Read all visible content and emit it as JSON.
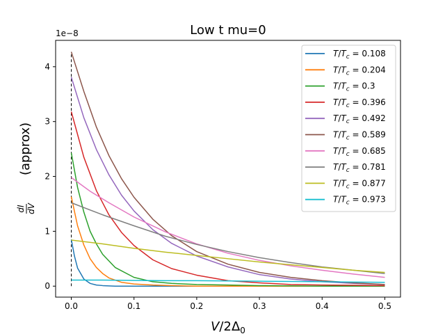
{
  "chart_data": {
    "type": "line",
    "title": "Low t  mu=0",
    "xlabel": "V/2Δ₀",
    "ylabel": "dI/dV (approx)",
    "ylabel_suffix": "(approx)",
    "y_scale_label": "1e−8",
    "y_unit_multiplier": 1e-08,
    "xlim": [
      -0.025,
      0.525
    ],
    "ylim": [
      -0.2,
      4.48
    ],
    "x_ticks": [
      0.0,
      0.1,
      0.2,
      0.3,
      0.4,
      0.5
    ],
    "x_tick_labels": [
      "0.0",
      "0.1",
      "0.2",
      "0.3",
      "0.4",
      "0.5"
    ],
    "y_ticks": [
      0,
      1,
      2,
      3,
      4
    ],
    "y_tick_labels": [
      "0",
      "1",
      "2",
      "3",
      "4"
    ],
    "grid": false,
    "legend_position": "top-right",
    "vline_x": 0.0,
    "vline_range": [
      0.0,
      4.27
    ],
    "series": [
      {
        "name": "T/Tc = 0.108",
        "color": "#1f77b4",
        "x": [
          0,
          0.005,
          0.01,
          0.02,
          0.03,
          0.04,
          0.05,
          0.07,
          0.1,
          0.15,
          0.2,
          0.3,
          0.4,
          0.5
        ],
        "y": [
          0.85,
          0.55,
          0.33,
          0.13,
          0.05,
          0.02,
          0.01,
          0.0,
          0.0,
          0.0,
          0.0,
          0.0,
          0.0,
          0.0
        ]
      },
      {
        "name": "T/Tc = 0.204",
        "color": "#ff7f0e",
        "x": [
          0,
          0.01,
          0.02,
          0.03,
          0.04,
          0.05,
          0.06,
          0.08,
          0.1,
          0.13,
          0.16,
          0.2,
          0.3,
          0.4,
          0.5
        ],
        "y": [
          1.63,
          1.1,
          0.75,
          0.5,
          0.34,
          0.23,
          0.15,
          0.07,
          0.04,
          0.02,
          0.01,
          0.0,
          0.0,
          0.0,
          0.0
        ]
      },
      {
        "name": "T/Tc = 0.3",
        "color": "#2ca02c",
        "x": [
          0,
          0.01,
          0.02,
          0.03,
          0.04,
          0.05,
          0.07,
          0.1,
          0.13,
          0.16,
          0.2,
          0.25,
          0.3,
          0.4,
          0.5
        ],
        "y": [
          2.43,
          1.8,
          1.35,
          1.0,
          0.77,
          0.58,
          0.34,
          0.16,
          0.08,
          0.05,
          0.03,
          0.02,
          0.01,
          0.0,
          0.0
        ]
      },
      {
        "name": "T/Tc = 0.396",
        "color": "#d62728",
        "x": [
          0,
          0.02,
          0.04,
          0.06,
          0.08,
          0.1,
          0.13,
          0.16,
          0.2,
          0.25,
          0.3,
          0.35,
          0.4,
          0.5
        ],
        "y": [
          3.18,
          2.35,
          1.74,
          1.3,
          0.98,
          0.74,
          0.48,
          0.32,
          0.2,
          0.1,
          0.06,
          0.03,
          0.02,
          0.01
        ]
      },
      {
        "name": "T/Tc = 0.492",
        "color": "#9467bd",
        "x": [
          0,
          0.02,
          0.04,
          0.06,
          0.08,
          0.1,
          0.13,
          0.16,
          0.2,
          0.25,
          0.3,
          0.35,
          0.4,
          0.45,
          0.5
        ],
        "y": [
          3.81,
          3.07,
          2.49,
          2.03,
          1.66,
          1.37,
          1.03,
          0.78,
          0.55,
          0.35,
          0.21,
          0.13,
          0.08,
          0.05,
          0.03
        ]
      },
      {
        "name": "T/Tc = 0.589",
        "color": "#8c564b",
        "x": [
          0,
          0.02,
          0.04,
          0.06,
          0.08,
          0.1,
          0.13,
          0.16,
          0.2,
          0.25,
          0.3,
          0.35,
          0.4,
          0.45,
          0.5
        ],
        "y": [
          4.27,
          3.55,
          2.9,
          2.38,
          1.96,
          1.62,
          1.22,
          0.92,
          0.63,
          0.4,
          0.25,
          0.16,
          0.1,
          0.06,
          0.03
        ]
      },
      {
        "name": "T/Tc = 0.685",
        "color": "#e377c2",
        "x": [
          0,
          0.03,
          0.06,
          0.1,
          0.15,
          0.2,
          0.25,
          0.3,
          0.35,
          0.4,
          0.45,
          0.5
        ],
        "y": [
          1.98,
          1.73,
          1.52,
          1.26,
          0.99,
          0.77,
          0.6,
          0.47,
          0.37,
          0.29,
          0.22,
          0.16
        ]
      },
      {
        "name": "T/Tc = 0.781",
        "color": "#7f7f7f",
        "x": [
          0,
          0.05,
          0.1,
          0.15,
          0.2,
          0.25,
          0.3,
          0.35,
          0.4,
          0.45,
          0.5
        ],
        "y": [
          1.52,
          1.3,
          1.1,
          0.91,
          0.76,
          0.63,
          0.52,
          0.43,
          0.35,
          0.29,
          0.23
        ]
      },
      {
        "name": "T/Tc = 0.877",
        "color": "#bcbd22",
        "x": [
          0,
          0.05,
          0.1,
          0.15,
          0.2,
          0.25,
          0.3,
          0.35,
          0.4,
          0.45,
          0.5
        ],
        "y": [
          0.84,
          0.77,
          0.69,
          0.62,
          0.56,
          0.5,
          0.44,
          0.39,
          0.34,
          0.29,
          0.25
        ]
      },
      {
        "name": "T/Tc = 0.973",
        "color": "#17becf",
        "x": [
          0,
          0.05,
          0.1,
          0.15,
          0.2,
          0.25,
          0.3,
          0.35,
          0.4,
          0.45,
          0.5
        ],
        "y": [
          0.11,
          0.11,
          0.105,
          0.1,
          0.1,
          0.095,
          0.09,
          0.085,
          0.08,
          0.075,
          0.07
        ]
      }
    ]
  }
}
